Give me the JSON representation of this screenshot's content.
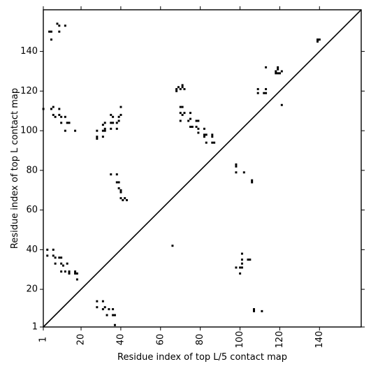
{
  "chart_data": {
    "type": "scatter",
    "title": "",
    "xlabel": "Residue index of top L/5 contact map",
    "ylabel": "Residue index of top L contact map",
    "xlim": [
      1,
      161
    ],
    "ylim": [
      1,
      161
    ],
    "x_ticks": [
      1,
      20,
      40,
      60,
      80,
      100,
      120,
      140
    ],
    "y_ticks": [
      1,
      20,
      40,
      60,
      80,
      100,
      120,
      140
    ],
    "grid": false,
    "legend": "none",
    "diagonal": true,
    "marker": "square",
    "marker_color": "#000000",
    "series": [
      {
        "name": "",
        "points": [
          [
            4,
            150
          ],
          [
            5,
            150
          ],
          [
            5,
            146
          ],
          [
            8,
            154
          ],
          [
            9,
            153
          ],
          [
            9,
            150
          ],
          [
            12,
            153
          ],
          [
            1,
            111
          ],
          [
            5,
            111
          ],
          [
            6,
            112
          ],
          [
            9,
            111
          ],
          [
            6,
            108
          ],
          [
            7,
            107
          ],
          [
            9,
            108
          ],
          [
            10,
            107
          ],
          [
            12,
            107
          ],
          [
            13,
            104
          ],
          [
            14,
            104
          ],
          [
            10,
            104
          ],
          [
            12,
            100
          ],
          [
            17,
            100
          ],
          [
            28,
            97
          ],
          [
            28,
            96
          ],
          [
            28,
            100
          ],
          [
            31,
            97
          ],
          [
            31,
            100
          ],
          [
            32,
            100
          ],
          [
            32,
            101
          ],
          [
            31,
            103
          ],
          [
            32,
            104
          ],
          [
            35,
            101
          ],
          [
            35,
            104
          ],
          [
            36,
            104
          ],
          [
            36,
            107
          ],
          [
            35,
            108
          ],
          [
            38,
            104
          ],
          [
            39,
            105
          ],
          [
            39,
            107
          ],
          [
            40,
            108
          ],
          [
            40,
            112
          ],
          [
            38,
            101
          ],
          [
            35,
            78
          ],
          [
            38,
            78
          ],
          [
            38,
            74
          ],
          [
            39,
            74
          ],
          [
            39,
            71
          ],
          [
            40,
            70
          ],
          [
            40,
            69
          ],
          [
            40,
            66
          ],
          [
            41,
            65
          ],
          [
            42,
            66
          ],
          [
            43,
            65
          ],
          [
            68,
            121
          ],
          [
            68,
            120
          ],
          [
            69,
            122
          ],
          [
            70,
            121
          ],
          [
            71,
            122
          ],
          [
            72,
            121
          ],
          [
            71,
            123
          ],
          [
            70,
            112
          ],
          [
            71,
            112
          ],
          [
            70,
            109
          ],
          [
            71,
            108
          ],
          [
            70,
            105
          ],
          [
            72,
            109
          ],
          [
            74,
            105
          ],
          [
            75,
            106
          ],
          [
            75,
            109
          ],
          [
            75,
            102
          ],
          [
            76,
            102
          ],
          [
            78,
            105
          ],
          [
            79,
            105
          ],
          [
            78,
            102
          ],
          [
            79,
            101
          ],
          [
            79,
            99
          ],
          [
            82,
            101
          ],
          [
            82,
            98
          ],
          [
            83,
            98
          ],
          [
            82,
            97
          ],
          [
            86,
            98
          ],
          [
            86,
            97
          ],
          [
            83,
            94
          ],
          [
            86,
            94
          ],
          [
            87,
            94
          ],
          [
            98,
            83
          ],
          [
            98,
            82
          ],
          [
            98,
            79
          ],
          [
            102,
            79
          ],
          [
            106,
            75
          ],
          [
            106,
            74
          ],
          [
            109,
            121
          ],
          [
            109,
            119
          ],
          [
            112,
            119
          ],
          [
            113,
            119
          ],
          [
            113,
            121
          ],
          [
            113,
            132
          ],
          [
            118,
            130
          ],
          [
            118,
            129
          ],
          [
            119,
            132
          ],
          [
            119,
            131
          ],
          [
            119,
            129
          ],
          [
            120,
            129
          ],
          [
            121,
            130
          ],
          [
            121,
            113
          ],
          [
            139,
            146
          ],
          [
            140,
            146
          ],
          [
            139,
            145
          ],
          [
            3,
            40
          ],
          [
            3,
            37
          ],
          [
            6,
            40
          ],
          [
            6,
            37
          ],
          [
            7,
            36
          ],
          [
            7,
            33
          ],
          [
            9,
            36
          ],
          [
            10,
            36
          ],
          [
            10,
            33
          ],
          [
            11,
            32
          ],
          [
            10,
            29
          ],
          [
            13,
            33
          ],
          [
            14,
            29
          ],
          [
            14,
            28
          ],
          [
            17,
            29
          ],
          [
            17,
            28
          ],
          [
            18,
            25
          ],
          [
            12,
            29
          ],
          [
            18,
            28
          ],
          [
            28,
            14
          ],
          [
            28,
            11
          ],
          [
            31,
            14
          ],
          [
            31,
            10
          ],
          [
            32,
            11
          ],
          [
            34,
            10
          ],
          [
            33,
            7
          ],
          [
            36,
            10
          ],
          [
            37,
            7
          ],
          [
            36,
            7
          ],
          [
            37,
            2
          ],
          [
            66,
            42
          ],
          [
            98,
            31
          ],
          [
            100,
            31
          ],
          [
            100,
            28
          ],
          [
            101,
            38
          ],
          [
            101,
            35
          ],
          [
            101,
            33
          ],
          [
            101,
            31
          ],
          [
            104,
            35
          ],
          [
            105,
            35
          ],
          [
            107,
            10
          ],
          [
            107,
            9
          ],
          [
            111,
            9
          ]
        ]
      }
    ]
  }
}
